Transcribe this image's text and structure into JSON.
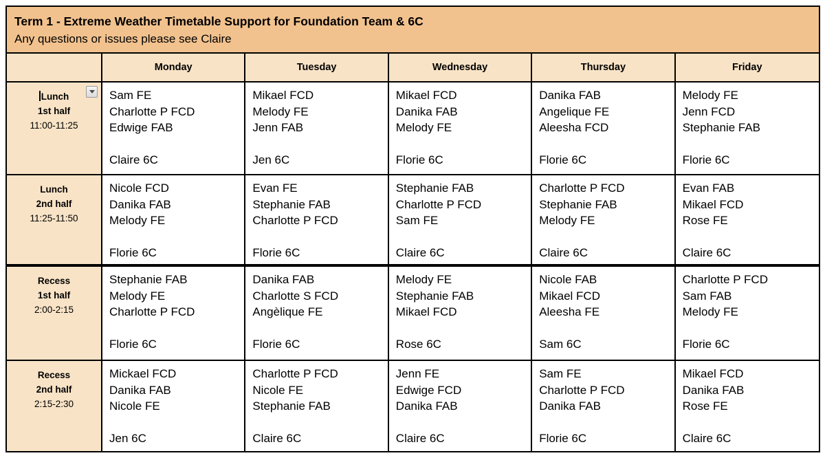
{
  "banner": {
    "title": "Term 1 - Extreme Weather Timetable Support for Foundation Team & 6C",
    "subtitle": "Any questions or issues please see Claire"
  },
  "colors": {
    "banner_bg": "#f2c28e",
    "header_bg": "#f8e3c6",
    "cell_bg": "#ffffff",
    "border": "#000000"
  },
  "icons": {
    "row_dropdown": "chevron-down"
  },
  "days": [
    "Monday",
    "Tuesday",
    "Wednesday",
    "Thursday",
    "Friday"
  ],
  "rows": [
    {
      "period": "Lunch",
      "half": "1st half",
      "time": "11:00-11:25",
      "cells": [
        {
          "staff": [
            "Sam FE",
            "Charlotte P FCD",
            "Edwige FAB"
          ],
          "lead": "Claire 6C"
        },
        {
          "staff": [
            "Mikael FCD",
            "Melody FE",
            "Jenn FAB"
          ],
          "lead": "Jen 6C"
        },
        {
          "staff": [
            "Mikael FCD",
            "Danika FAB",
            "Melody FE"
          ],
          "lead": "Florie 6C"
        },
        {
          "staff": [
            "Danika FAB",
            "Angelique FE",
            "Aleesha FCD"
          ],
          "lead": "Florie 6C"
        },
        {
          "staff": [
            "Melody FE",
            "Jenn FCD",
            "Stephanie FAB"
          ],
          "lead": "Florie 6C"
        }
      ]
    },
    {
      "period": "Lunch",
      "half": "2nd half",
      "time": "11:25-11:50",
      "cells": [
        {
          "staff": [
            "Nicole FCD",
            "Danika FAB",
            "Melody FE"
          ],
          "lead": "Florie 6C"
        },
        {
          "staff": [
            "Evan FE",
            "Stephanie FAB",
            "Charlotte P FCD"
          ],
          "lead": "Florie 6C"
        },
        {
          "staff": [
            "Stephanie FAB",
            "Charlotte P FCD",
            "Sam FE"
          ],
          "lead": "Claire 6C"
        },
        {
          "staff": [
            "Charlotte P FCD",
            "Stephanie FAB",
            "Melody FE"
          ],
          "lead": "Claire 6C"
        },
        {
          "staff": [
            "Evan FAB",
            "Mikael FCD",
            "Rose FE"
          ],
          "lead": "Claire 6C"
        }
      ]
    },
    {
      "period": "Recess",
      "half": "1st half",
      "time": "2:00-2:15",
      "cells": [
        {
          "staff": [
            "Stephanie FAB",
            "Melody FE",
            "Charlotte P FCD"
          ],
          "lead": "Florie 6C"
        },
        {
          "staff": [
            "Danika FAB",
            "Charlotte S FCD",
            "Angèlique FE"
          ],
          "lead": "Florie 6C"
        },
        {
          "staff": [
            "Melody FE",
            "Stephanie FAB",
            "Mikael FCD"
          ],
          "lead": "Rose 6C"
        },
        {
          "staff": [
            "Nicole FAB",
            "Mikael FCD",
            "Aleesha FE"
          ],
          "lead": "Sam 6C"
        },
        {
          "staff": [
            "Charlotte P FCD",
            "Sam FAB",
            "Melody FE"
          ],
          "lead": "Florie 6C"
        }
      ]
    },
    {
      "period": "Recess",
      "half": "2nd half",
      "time": "2:15-2:30",
      "cells": [
        {
          "staff": [
            "Mickael FCD",
            "Danika FAB",
            "Nicole FE"
          ],
          "lead": "Jen 6C"
        },
        {
          "staff": [
            "Charlotte P FCD",
            "Nicole FE",
            "Stephanie FAB"
          ],
          "lead": "Claire 6C"
        },
        {
          "staff": [
            "Jenn FE",
            "Edwige FCD",
            "Danika FAB"
          ],
          "lead": "Claire 6C"
        },
        {
          "staff": [
            "Sam FE",
            "Charlotte P FCD",
            "Danika FAB"
          ],
          "lead": "Florie 6C"
        },
        {
          "staff": [
            "Mikael FCD",
            "Danika FAB",
            "Rose FE"
          ],
          "lead": "Claire 6C"
        }
      ]
    }
  ]
}
